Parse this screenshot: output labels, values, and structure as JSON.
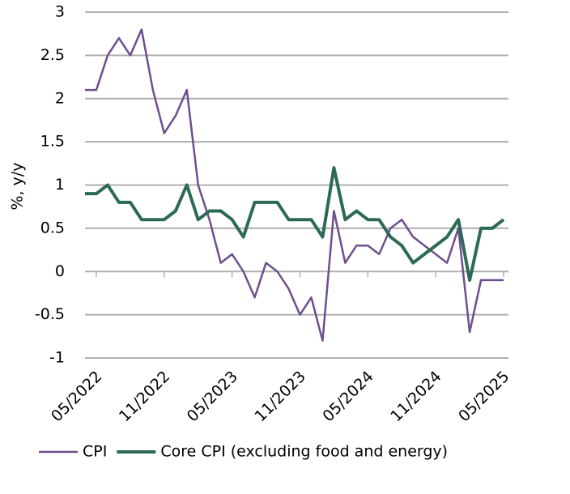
{
  "chart_data": {
    "type": "line",
    "ylabel": "%, y/y",
    "categories": [
      null,
      "05/2022",
      null,
      null,
      null,
      null,
      null,
      "11/2022",
      null,
      null,
      null,
      null,
      null,
      "05/2023",
      null,
      null,
      null,
      null,
      null,
      "11/2023",
      null,
      null,
      null,
      null,
      null,
      "05/2024",
      null,
      null,
      null,
      null,
      null,
      "11/2024",
      null,
      null,
      null,
      null,
      null,
      "05/2025"
    ],
    "series": [
      {
        "name": "CPI",
        "color": "#6e4e8e",
        "width": 2.5,
        "values": [
          2.1,
          2.1,
          2.5,
          2.7,
          2.5,
          2.8,
          2.1,
          1.6,
          1.8,
          2.1,
          1.0,
          0.6,
          0.1,
          0.2,
          0.0,
          -0.3,
          0.1,
          0.0,
          -0.2,
          -0.5,
          -0.3,
          -0.8,
          0.7,
          0.1,
          0.3,
          0.3,
          0.2,
          0.5,
          0.6,
          0.4,
          0.3,
          0.2,
          0.1,
          0.5,
          -0.7,
          -0.1,
          -0.1,
          -0.1
        ]
      },
      {
        "name": "Core CPI (excluding food and energy)",
        "color": "#2d6a56",
        "width": 4,
        "values": [
          0.9,
          0.9,
          1.0,
          0.8,
          0.8,
          0.6,
          0.6,
          0.6,
          0.7,
          1.0,
          0.6,
          0.7,
          0.7,
          0.6,
          0.4,
          0.8,
          0.8,
          0.8,
          0.6,
          0.6,
          0.6,
          0.4,
          1.2,
          0.6,
          0.7,
          0.6,
          0.6,
          0.4,
          0.3,
          0.1,
          0.2,
          0.3,
          0.4,
          0.6,
          -0.1,
          0.5,
          0.5,
          0.6
        ]
      }
    ],
    "ylim": [
      -1,
      3
    ],
    "yticks": [
      -1,
      -0.5,
      0,
      0.5,
      1,
      1.5,
      2,
      2.5,
      3
    ],
    "grid": true
  }
}
